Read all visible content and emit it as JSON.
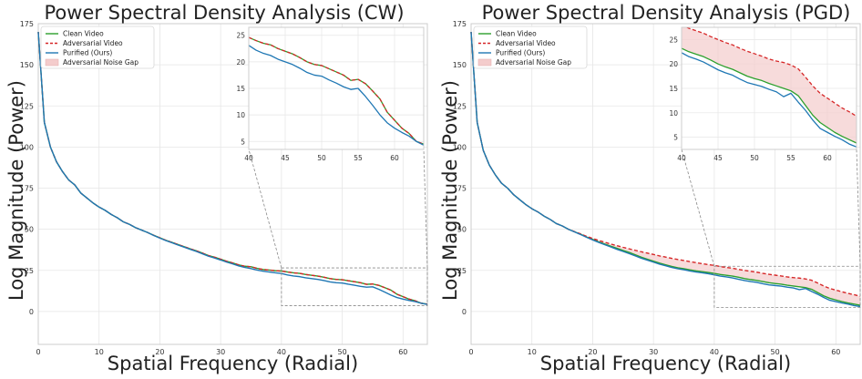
{
  "colors": {
    "clean": "#2ca02c",
    "adversarial": "#d62728",
    "purified": "#1f77b4",
    "gap_fill": "#f4cccc",
    "grid": "#e6e6e6",
    "frame": "#cccccc",
    "connector": "#888888"
  },
  "chart_data": [
    {
      "type": "line",
      "title": "Power Spectral Density Analysis (CW)",
      "xlabel": "Spatial Frequency (Radial)",
      "ylabel": "Log Magnitude (Power)",
      "xlim": [
        0,
        64
      ],
      "ylim": [
        -20,
        175
      ],
      "xticks": [
        0,
        10,
        20,
        30,
        40,
        50,
        60
      ],
      "yticks": [
        0,
        25,
        50,
        75,
        100,
        125,
        150,
        175
      ],
      "grid": true,
      "legend": {
        "position": "top-left",
        "entries": [
          "Clean Video",
          "Adversarial Video",
          "Purified (Ours)",
          "Adversarial Noise Gap"
        ]
      },
      "x": [
        0,
        1,
        2,
        3,
        4,
        5,
        6,
        7,
        8,
        9,
        10,
        11,
        12,
        13,
        14,
        15,
        16,
        17,
        18,
        19,
        20,
        21,
        22,
        23,
        24,
        25,
        26,
        27,
        28,
        29,
        30,
        31,
        32,
        33,
        34,
        35,
        36,
        37,
        38,
        39,
        40,
        41,
        42,
        43,
        44,
        45,
        46,
        47,
        48,
        49,
        50,
        51,
        52,
        53,
        54,
        55,
        56,
        57,
        58,
        59,
        60,
        61,
        62,
        63,
        64
      ],
      "series": [
        {
          "name": "Clean Video",
          "style": "solid",
          "values": [
            170,
            115,
            100,
            91,
            85,
            80,
            77,
            72,
            69,
            66,
            63.5,
            61.5,
            59,
            57,
            54.5,
            53,
            51,
            49.5,
            48,
            46.3,
            44.8,
            43.3,
            42,
            40.7,
            39.4,
            38.1,
            36.9,
            35.5,
            34,
            33,
            31.8,
            30.5,
            29.5,
            28.3,
            27.5,
            27.2,
            26.2,
            25.5,
            25.2,
            24.8,
            24.6,
            24,
            23.5,
            23.2,
            22.5,
            22,
            21.5,
            20.8,
            20,
            19.5,
            19.3,
            18.7,
            18.1,
            17.5,
            16.5,
            16.7,
            15.9,
            14.5,
            13,
            10.5,
            9,
            7.5,
            6.5,
            5,
            4.5
          ]
        },
        {
          "name": "Adversarial Video",
          "style": "dashed",
          "values": [
            170,
            115,
            100,
            91,
            85,
            80,
            77,
            72,
            69,
            66,
            63.5,
            61.5,
            59,
            57,
            54.5,
            53,
            51,
            49.5,
            48,
            46.3,
            44.8,
            43.3,
            42,
            40.7,
            39.4,
            38.1,
            36.9,
            35.5,
            34,
            33,
            31.8,
            30.5,
            29.5,
            28.3,
            27.5,
            27.2,
            26.2,
            25.5,
            25.2,
            24.8,
            24.6,
            24,
            23.5,
            23.2,
            22.5,
            22,
            21.5,
            20.8,
            20,
            19.5,
            19.3,
            18.7,
            18.1,
            17.5,
            16.5,
            16.7,
            15.9,
            14.5,
            13,
            10.5,
            9,
            7.5,
            6.5,
            5,
            4.5
          ]
        },
        {
          "name": "Purified (Ours)",
          "style": "solid",
          "values": [
            170,
            115,
            100,
            91,
            85,
            80,
            77,
            72,
            69,
            66,
            63.5,
            61.5,
            59,
            57,
            54.5,
            53,
            51,
            49.5,
            48,
            46.2,
            44.6,
            43.1,
            41.8,
            40.4,
            39.1,
            37.8,
            36.5,
            35.1,
            33.6,
            32.5,
            31.3,
            30,
            28.9,
            27.7,
            26.8,
            26.1,
            25.2,
            24.5,
            24,
            23.5,
            23.1,
            22.2,
            21.6,
            21.2,
            20.5,
            20,
            19.5,
            18.8,
            18,
            17.5,
            17.3,
            16.6,
            16,
            15.3,
            14.8,
            15,
            13.5,
            11.8,
            10,
            8.5,
            7.5,
            6.7,
            6,
            5,
            4.3
          ]
        }
      ],
      "inset": {
        "xlim": [
          40,
          64
        ],
        "ylim": [
          3.5,
          26.5
        ],
        "xticks": [
          40,
          45,
          50,
          55,
          60
        ],
        "yticks": [
          5,
          10,
          15,
          20,
          25
        ]
      }
    },
    {
      "type": "line",
      "title": "Power Spectral Density Analysis (PGD)",
      "xlabel": "Spatial Frequency (Radial)",
      "ylabel": "Log Magnitude (Power)",
      "xlim": [
        0,
        64
      ],
      "ylim": [
        -20,
        175
      ],
      "xticks": [
        0,
        10,
        20,
        30,
        40,
        50,
        60
      ],
      "yticks": [
        0,
        25,
        50,
        75,
        100,
        125,
        150,
        175
      ],
      "grid": true,
      "legend": {
        "position": "top-left",
        "entries": [
          "Clean Video",
          "Adversarial Video",
          "Purified (Ours)",
          "Adversarial Noise Gap"
        ]
      },
      "x": [
        0,
        1,
        2,
        3,
        4,
        5,
        6,
        7,
        8,
        9,
        10,
        11,
        12,
        13,
        14,
        15,
        16,
        17,
        18,
        19,
        20,
        21,
        22,
        23,
        24,
        25,
        26,
        27,
        28,
        29,
        30,
        31,
        32,
        33,
        34,
        35,
        36,
        37,
        38,
        39,
        40,
        41,
        42,
        43,
        44,
        45,
        46,
        47,
        48,
        49,
        50,
        51,
        52,
        53,
        54,
        55,
        56,
        57,
        58,
        59,
        60,
        61,
        62,
        63,
        64
      ],
      "series": [
        {
          "name": "Clean Video",
          "style": "solid",
          "values": [
            170,
            115,
            98,
            89,
            83,
            78,
            75,
            71,
            68,
            65,
            62.5,
            60.5,
            58,
            56,
            53.5,
            52,
            50,
            48.5,
            47,
            45.3,
            43.8,
            42.3,
            41,
            39.7,
            38.4,
            37.1,
            35.9,
            34.5,
            33,
            31.8,
            30.6,
            29.4,
            28.4,
            27.4,
            26.6,
            26,
            25.3,
            24.7,
            24.2,
            23.7,
            23.2,
            22.5,
            22,
            21.5,
            20.8,
            20,
            19.4,
            18.9,
            18.2,
            17.5,
            17,
            16.6,
            16,
            15.5,
            15,
            14.5,
            13.5,
            11.5,
            9.5,
            8,
            7,
            6,
            5.2,
            4.5,
            3.8
          ]
        },
        {
          "name": "Adversarial Video",
          "style": "dashed",
          "values": [
            170,
            115,
            98,
            89,
            83,
            78,
            75,
            71,
            68,
            65,
            62.5,
            60.5,
            58,
            56,
            53.5,
            52,
            50,
            48.6,
            47.2,
            45.7,
            44.4,
            43.2,
            42.1,
            41,
            40,
            39,
            38.1,
            37.2,
            36.3,
            35.5,
            34.7,
            33.8,
            33.1,
            32.3,
            31.6,
            31,
            30.3,
            29.7,
            29.1,
            28.5,
            28,
            27.3,
            26.8,
            26.3,
            25.6,
            25,
            24.4,
            23.9,
            23.2,
            22.6,
            22.1,
            21.6,
            21,
            20.6,
            20.3,
            19.8,
            19,
            17.3,
            15.5,
            14,
            13,
            12,
            11,
            10.2,
            9.3
          ]
        },
        {
          "name": "Purified (Ours)",
          "style": "solid",
          "values": [
            170,
            115,
            98,
            89,
            83,
            78,
            75,
            71,
            68,
            65,
            62.5,
            60.5,
            58,
            56,
            53.5,
            52,
            50,
            48.4,
            46.8,
            45.1,
            43.5,
            42,
            40.6,
            39.2,
            37.8,
            36.5,
            35.2,
            33.8,
            32.4,
            31.2,
            30,
            28.8,
            27.8,
            26.8,
            26,
            25.4,
            24.6,
            24,
            23.5,
            23,
            22.3,
            21.5,
            21,
            20.4,
            19.6,
            18.8,
            18.2,
            17.7,
            16.9,
            16.2,
            15.8,
            15.4,
            14.8,
            14.3,
            13.3,
            14,
            12.2,
            10.5,
            8.5,
            6.8,
            6,
            5.2,
            4.5,
            3.6,
            3
          ]
        }
      ],
      "inset": {
        "xlim": [
          40,
          64
        ],
        "ylim": [
          2.5,
          27.5
        ],
        "xticks": [
          40,
          45,
          50,
          55,
          60
        ],
        "yticks": [
          5,
          10,
          15,
          20,
          25
        ]
      }
    }
  ]
}
